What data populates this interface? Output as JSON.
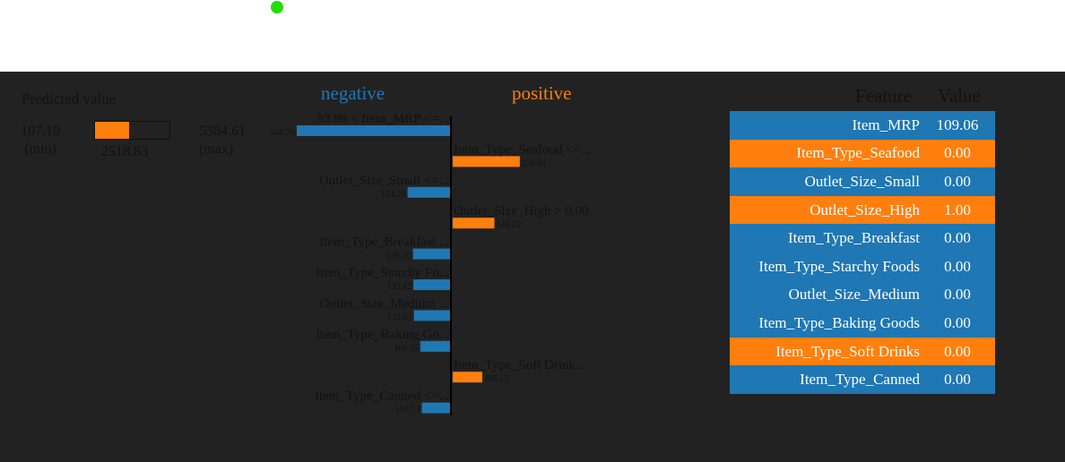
{
  "predicted": {
    "title": "Predicted value",
    "min_value": "107.19",
    "min_label": "(min)",
    "max_value": "5384.61",
    "max_label": "(max)",
    "value": "2518.83",
    "fraction": 0.458
  },
  "colors": {
    "negative": "#1f77b4",
    "positive": "#ff7f0e"
  },
  "headers": {
    "negative": "negative",
    "positive": "positive"
  },
  "chart_data": {
    "type": "bar",
    "bars": [
      {
        "label": "93.99 < Item_MRP <=...",
        "value": 548.79,
        "value_label": "548.79",
        "sign": "negative"
      },
      {
        "label": "Item_Type_Seafood <=...",
        "value": 238.81,
        "value_label": "238.81",
        "sign": "positive"
      },
      {
        "label": "Outlet_Size_Small <=...",
        "value": 154.29,
        "value_label": "154.29",
        "sign": "negative"
      },
      {
        "label": "Outlet_Size_High > 0.00",
        "value": 148.25,
        "value_label": "148.25",
        "sign": "positive"
      },
      {
        "label": "Item_Type_Breakfast ...",
        "value": 135.1,
        "value_label": "135.10",
        "sign": "negative"
      },
      {
        "label": "Item_Type_Starchy Fo...",
        "value": 133.42,
        "value_label": "133.42",
        "sign": "negative"
      },
      {
        "label": "Outlet_Size_Medium ...",
        "value": 131.81,
        "value_label": "131.81",
        "sign": "negative"
      },
      {
        "label": "Item_Type_Baking Go...",
        "value": 108.95,
        "value_label": "108.95",
        "sign": "negative"
      },
      {
        "label": "Item_Type_Soft Drink...",
        "value": 105.15,
        "value_label": "105.15",
        "sign": "positive"
      },
      {
        "label": "Item_Type_Canned <=...",
        "value": 103.73,
        "value_label": "103.73",
        "sign": "negative"
      }
    ],
    "xlim": [
      0,
      548.79
    ]
  },
  "table": {
    "feature_header": "Feature",
    "value_header": "Value",
    "rows": [
      {
        "feature": "Item_MRP",
        "value": "109.06",
        "sign": "negative"
      },
      {
        "feature": "Item_Type_Seafood",
        "value": "0.00",
        "sign": "positive"
      },
      {
        "feature": "Outlet_Size_Small",
        "value": "0.00",
        "sign": "negative"
      },
      {
        "feature": "Outlet_Size_High",
        "value": "1.00",
        "sign": "positive"
      },
      {
        "feature": "Item_Type_Breakfast",
        "value": "0.00",
        "sign": "negative"
      },
      {
        "feature": "Item_Type_Starchy Foods",
        "value": "0.00",
        "sign": "negative"
      },
      {
        "feature": "Outlet_Size_Medium",
        "value": "0.00",
        "sign": "negative"
      },
      {
        "feature": "Item_Type_Baking Goods",
        "value": "0.00",
        "sign": "negative"
      },
      {
        "feature": "Item_Type_Soft Drinks",
        "value": "0.00",
        "sign": "positive"
      },
      {
        "feature": "Item_Type_Canned",
        "value": "0.00",
        "sign": "negative"
      }
    ]
  }
}
